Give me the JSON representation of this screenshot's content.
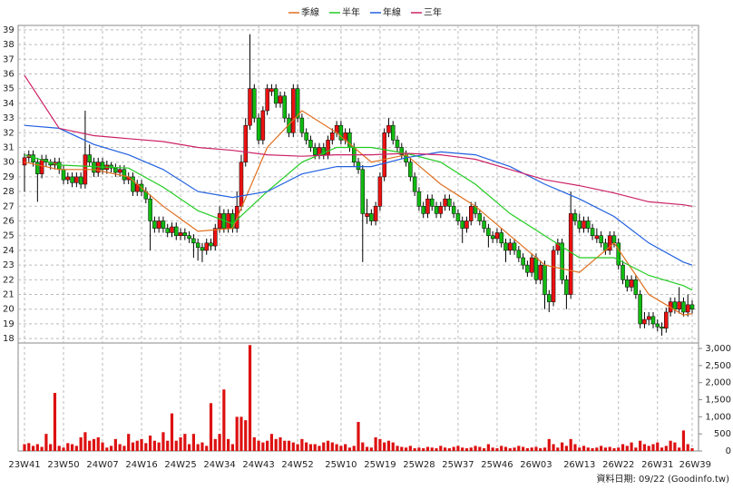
{
  "chart_data": {
    "type": "candlestick",
    "series": [
      {
        "name": "季線",
        "color": "#e07020",
        "x": [
          0,
          8,
          16,
          24,
          32,
          40,
          48,
          56,
          64,
          72,
          80,
          88,
          96,
          104,
          112,
          120,
          128,
          136,
          144,
          152,
          154
        ],
        "values": [
          30,
          29.5,
          29.5,
          29,
          27,
          25.3,
          25.5,
          31,
          33.5,
          32,
          30,
          30.5,
          28.5,
          27,
          25,
          23,
          22.5,
          24.5,
          21,
          19.6,
          19.7
        ]
      },
      {
        "name": "半年",
        "color": "#22cc22",
        "x": [
          0,
          8,
          16,
          24,
          32,
          40,
          48,
          56,
          64,
          72,
          80,
          88,
          96,
          104,
          112,
          120,
          128,
          136,
          144,
          152,
          154
        ],
        "values": [
          30.5,
          29.8,
          29.7,
          29.6,
          28.3,
          26.7,
          25.8,
          28,
          30,
          31,
          31,
          30.6,
          30,
          28.5,
          26.5,
          25,
          23.5,
          23.5,
          22.3,
          21.6,
          21.3
        ]
      },
      {
        "name": "年線",
        "color": "#2060e0",
        "x": [
          0,
          8,
          16,
          24,
          32,
          40,
          48,
          56,
          64,
          72,
          80,
          88,
          96,
          104,
          112,
          120,
          128,
          136,
          144,
          152,
          154
        ],
        "values": [
          32.5,
          32.3,
          31.2,
          30.5,
          29.5,
          28,
          27.6,
          28,
          29.2,
          29.7,
          29.7,
          30.3,
          30.7,
          30.5,
          29.7,
          28.5,
          27.5,
          26.3,
          24.5,
          23.2,
          23
        ]
      },
      {
        "name": "三年",
        "color": "#cc2266",
        "x": [
          0,
          8,
          16,
          24,
          32,
          40,
          48,
          56,
          64,
          72,
          80,
          88,
          96,
          104,
          112,
          120,
          128,
          136,
          144,
          152,
          154
        ],
        "values": [
          35.9,
          32.3,
          31.8,
          31.6,
          31.4,
          31,
          30.8,
          30.5,
          30.4,
          30.5,
          30.5,
          30.6,
          30.5,
          30.2,
          29.5,
          28.8,
          28.4,
          27.9,
          27.3,
          27.1,
          27
        ]
      }
    ],
    "categories": [
      "23W41",
      null,
      null,
      null,
      null,
      null,
      null,
      null,
      null,
      "23W50",
      null,
      null,
      null,
      null,
      null,
      null,
      null,
      null,
      "24W07",
      null,
      null,
      null,
      null,
      null,
      null,
      null,
      null,
      "24W16",
      null,
      null,
      null,
      null,
      null,
      null,
      null,
      null,
      "24W25",
      null,
      null,
      null,
      null,
      null,
      null,
      null,
      null,
      "24W34",
      null,
      null,
      null,
      null,
      null,
      null,
      null,
      null,
      "24W43",
      null,
      null,
      null,
      null,
      null,
      null,
      null,
      null,
      "24W52",
      null,
      null,
      null,
      null,
      null,
      null,
      null,
      null,
      null,
      "25W10",
      null,
      null,
      null,
      null,
      null,
      null,
      null,
      null,
      "25W19",
      null,
      null,
      null,
      null,
      null,
      null,
      null,
      null,
      "25W28",
      null,
      null,
      null,
      null,
      null,
      null,
      null,
      null,
      "25W37",
      null,
      null,
      null,
      null,
      null,
      null,
      null,
      null,
      "25W46",
      null,
      null,
      null,
      null,
      null,
      null,
      null,
      null,
      "26W03",
      null,
      null,
      null,
      null,
      null,
      null,
      null,
      null,
      null,
      "26W13",
      null,
      null,
      null,
      null,
      null,
      null,
      null,
      null,
      "26W22",
      null,
      null,
      null,
      null,
      null,
      null,
      null,
      null,
      "26W31",
      null,
      null,
      null,
      null,
      null,
      null,
      null,
      "26W39"
    ],
    "ohlc": [
      [
        29.8,
        30.6,
        28,
        30.3
      ],
      [
        30.3,
        30.8,
        30,
        30.5
      ],
      [
        30.5,
        30.8,
        29.7,
        30
      ],
      [
        30,
        30.3,
        27.3,
        29.2
      ],
      [
        29.2,
        30.5,
        28.9,
        30.2
      ],
      [
        30.2,
        30.5,
        29.7,
        30
      ],
      [
        30,
        30.2,
        29.5,
        29.8
      ],
      [
        29.8,
        30.3,
        29.5,
        30
      ],
      [
        30,
        30.3,
        29.2,
        29.5
      ],
      [
        29.5,
        29.8,
        28.5,
        28.8
      ],
      [
        28.8,
        29.3,
        28.5,
        29
      ],
      [
        29,
        29.3,
        28.3,
        28.6
      ],
      [
        28.6,
        29.3,
        28.3,
        29
      ],
      [
        29,
        29.3,
        28.2,
        28.5
      ],
      [
        28.5,
        33.5,
        28.2,
        30.5
      ],
      [
        30.5,
        31.2,
        29.7,
        30
      ],
      [
        30,
        30.3,
        29,
        29.3
      ],
      [
        29.3,
        30.3,
        29,
        30
      ],
      [
        30,
        30.3,
        29.2,
        29.5
      ],
      [
        29.5,
        30.1,
        29.2,
        29.8
      ],
      [
        29.8,
        30,
        29.3,
        29.6
      ],
      [
        29.6,
        29.9,
        29,
        29.3
      ],
      [
        29.3,
        29.8,
        29,
        29.5
      ],
      [
        29.5,
        29.8,
        28.5,
        28.8
      ],
      [
        28.8,
        29.3,
        28.5,
        29
      ],
      [
        29,
        29.3,
        27.7,
        28
      ],
      [
        28,
        28.8,
        27.7,
        28.5
      ],
      [
        28.5,
        28.8,
        27.7,
        28
      ],
      [
        28,
        28.3,
        27.2,
        27.5
      ],
      [
        27.5,
        27.8,
        24,
        26
      ],
      [
        26,
        26.3,
        25.2,
        25.5
      ],
      [
        25.5,
        26.3,
        25.2,
        26
      ],
      [
        26,
        26.3,
        25.2,
        25.5
      ],
      [
        25.5,
        25.8,
        24.9,
        25.2
      ],
      [
        25.2,
        25.9,
        24.9,
        25.6
      ],
      [
        25.6,
        25.9,
        24.7,
        25
      ],
      [
        25,
        25.5,
        24.7,
        25.2
      ],
      [
        25.2,
        25.5,
        24.7,
        25
      ],
      [
        25,
        25.3,
        24.5,
        24.8
      ],
      [
        24.8,
        25.1,
        23.5,
        24.5
      ],
      [
        24.5,
        24.8,
        23.3,
        24.2
      ],
      [
        24.2,
        24.5,
        23.2,
        24
      ],
      [
        24,
        24.8,
        23.7,
        24.5
      ],
      [
        24.5,
        24.8,
        24,
        24.3
      ],
      [
        24.3,
        25.8,
        24,
        25.5
      ],
      [
        25.5,
        27,
        25.2,
        26.5
      ],
      [
        26.5,
        26.8,
        25.2,
        25.5
      ],
      [
        25.5,
        26.8,
        25.2,
        26.5
      ],
      [
        26.5,
        26.8,
        25.2,
        25.5
      ],
      [
        25.5,
        28,
        25.2,
        27
      ],
      [
        27,
        30.5,
        26.7,
        30
      ],
      [
        30,
        33,
        29.7,
        32.5
      ],
      [
        32.5,
        38.7,
        32.2,
        35
      ],
      [
        35,
        35.3,
        32.7,
        33
      ],
      [
        33,
        33.3,
        31.2,
        31.5
      ],
      [
        31.5,
        33.8,
        31.2,
        33.5
      ],
      [
        33.5,
        35.3,
        33.2,
        35
      ],
      [
        34.8,
        35.3,
        34.5,
        35
      ],
      [
        35,
        35.3,
        33.7,
        34
      ],
      [
        34,
        34.8,
        33.7,
        34.5
      ],
      [
        34.5,
        34.8,
        32.7,
        33
      ],
      [
        33,
        33.3,
        31.7,
        32
      ],
      [
        32,
        35.3,
        31.7,
        35
      ],
      [
        35,
        35.3,
        32.7,
        33
      ],
      [
        33,
        33.3,
        31.7,
        32
      ],
      [
        32,
        32.3,
        31.2,
        31.5
      ],
      [
        31.5,
        31.8,
        30.7,
        31
      ],
      [
        31,
        31.3,
        30.2,
        30.5
      ],
      [
        30.5,
        31.3,
        30.2,
        31
      ],
      [
        31,
        31.3,
        30.2,
        30.5
      ],
      [
        30.5,
        31.8,
        30.2,
        31.5
      ],
      [
        31.5,
        32.3,
        31.2,
        32
      ],
      [
        32,
        32.8,
        31.7,
        32.5
      ],
      [
        32.5,
        32.8,
        31.2,
        31.5
      ],
      [
        31.5,
        32.3,
        31.2,
        32
      ],
      [
        32,
        32.3,
        30.7,
        31
      ],
      [
        31,
        31.3,
        29.7,
        30
      ],
      [
        30,
        30.3,
        29.2,
        29.5
      ],
      [
        29.5,
        29.8,
        23.2,
        26.5
      ],
      [
        26.3,
        27.5,
        25.8,
        26.5
      ],
      [
        26.5,
        26.8,
        25.7,
        26
      ],
      [
        26,
        27.3,
        25.7,
        27
      ],
      [
        27,
        29.3,
        26.7,
        29
      ],
      [
        29,
        32.3,
        28.7,
        32
      ],
      [
        32,
        33,
        31.7,
        32.5
      ],
      [
        32.5,
        32.8,
        31.2,
        31.5
      ],
      [
        31.5,
        31.8,
        30.7,
        31
      ],
      [
        31,
        31.3,
        30.2,
        30.5
      ],
      [
        30.5,
        30.8,
        29.7,
        30
      ],
      [
        30,
        30.3,
        28.7,
        29
      ],
      [
        29,
        29.3,
        27.7,
        28
      ],
      [
        28,
        28.3,
        26.7,
        27
      ],
      [
        27,
        27.3,
        26.2,
        26.5
      ],
      [
        26.5,
        27.8,
        26.2,
        27.5
      ],
      [
        27.5,
        27.8,
        26.7,
        27
      ],
      [
        27,
        27.3,
        26.2,
        26.5
      ],
      [
        26.5,
        27.3,
        26.2,
        27
      ],
      [
        27,
        27.8,
        26.7,
        27.5
      ],
      [
        27.5,
        27.8,
        26.7,
        27
      ],
      [
        27,
        27.3,
        26.2,
        26.5
      ],
      [
        26.5,
        26.8,
        25.7,
        26
      ],
      [
        26,
        26.3,
        24.5,
        25.5
      ],
      [
        25.5,
        26.3,
        25.2,
        26
      ],
      [
        26,
        27.3,
        25.7,
        27
      ],
      [
        27,
        27.3,
        26.2,
        26.5
      ],
      [
        26.5,
        26.8,
        25.7,
        26
      ],
      [
        26,
        26.3,
        25.2,
        25.5
      ],
      [
        25.5,
        25.8,
        24.2,
        25
      ],
      [
        25,
        25.3,
        24.5,
        24.8
      ],
      [
        24.8,
        25.5,
        24.5,
        25.2
      ],
      [
        25.2,
        25.5,
        24.2,
        24.5
      ],
      [
        24.5,
        24.8,
        23.2,
        24
      ],
      [
        24,
        24.8,
        23.7,
        24.5
      ],
      [
        24.5,
        24.8,
        23.7,
        24
      ],
      [
        24,
        24.3,
        23.2,
        23.5
      ],
      [
        23.5,
        23.8,
        22.7,
        23
      ],
      [
        23,
        23.3,
        22.2,
        22.5
      ],
      [
        22.5,
        23.8,
        22.2,
        23.5
      ],
      [
        23.5,
        23.8,
        21.7,
        22
      ],
      [
        22,
        23.3,
        21.7,
        23
      ],
      [
        23,
        23.3,
        20,
        21
      ],
      [
        21,
        21.3,
        19.8,
        20.5
      ],
      [
        20.5,
        24.3,
        20.2,
        24
      ],
      [
        24,
        24.8,
        23.7,
        24.5
      ],
      [
        24.5,
        24.8,
        21.7,
        22
      ],
      [
        22,
        22.3,
        20,
        21
      ],
      [
        21,
        28,
        20.7,
        26.5
      ],
      [
        26.5,
        26.8,
        25.7,
        26
      ],
      [
        26,
        26.5,
        25.2,
        25.5
      ],
      [
        25.5,
        26.3,
        25.2,
        26
      ],
      [
        26,
        26.3,
        25.2,
        25.5
      ],
      [
        25.5,
        25.8,
        24.7,
        25
      ],
      [
        24.8,
        25.5,
        24.5,
        25
      ],
      [
        25,
        25.3,
        24.2,
        24.5
      ],
      [
        24.5,
        24.8,
        23.7,
        24
      ],
      [
        24,
        25.3,
        23.7,
        25
      ],
      [
        25,
        25.3,
        24.2,
        24.5
      ],
      [
        24.5,
        24.8,
        22.7,
        23
      ],
      [
        23,
        23.3,
        21.7,
        22
      ],
      [
        22,
        22.3,
        21.2,
        21.5
      ],
      [
        21.5,
        22.3,
        21.2,
        22
      ],
      [
        22,
        22.3,
        20.7,
        21
      ],
      [
        21,
        21.3,
        18.7,
        19
      ],
      [
        19,
        19.8,
        18.7,
        19.3
      ],
      [
        19.3,
        19.8,
        18.9,
        19.5
      ],
      [
        19.5,
        19.8,
        18.7,
        19
      ],
      [
        19,
        19.3,
        18.5,
        18.8
      ],
      [
        18.8,
        19.1,
        18.2,
        18.7
      ],
      [
        18.7,
        20.1,
        18.4,
        19.8
      ],
      [
        19.8,
        20.8,
        19.5,
        20.5
      ],
      [
        20.5,
        20.8,
        19.7,
        20
      ],
      [
        20,
        21.5,
        19.7,
        20.5
      ],
      [
        20.5,
        20.8,
        19.5,
        19.8
      ],
      [
        19.8,
        21,
        19.5,
        20.3
      ],
      [
        20.3,
        20.6,
        19.7,
        20
      ]
    ],
    "volume": [
      200,
      230,
      150,
      200,
      120,
      500,
      200,
      1700,
      150,
      100,
      230,
      200,
      150,
      400,
      550,
      300,
      350,
      400,
      250,
      100,
      150,
      350,
      200,
      150,
      500,
      250,
      300,
      350,
      230,
      450,
      300,
      250,
      550,
      300,
      1100,
      300,
      400,
      500,
      200,
      500,
      200,
      250,
      150,
      1400,
      350,
      500,
      1800,
      350,
      200,
      1000,
      1000,
      900,
      3100,
      400,
      300,
      250,
      300,
      500,
      350,
      400,
      300,
      300,
      250,
      200,
      350,
      250,
      200,
      200,
      150,
      250,
      300,
      250,
      200,
      150,
      200,
      100,
      150,
      850,
      250,
      120,
      100,
      400,
      350,
      250,
      300,
      250,
      150,
      120,
      100,
      150,
      80,
      100,
      80,
      120,
      100,
      80,
      150,
      100,
      80,
      120,
      150,
      100,
      80,
      100,
      150,
      120,
      80,
      200,
      100,
      80,
      150,
      120,
      80,
      100,
      150,
      120,
      80,
      100,
      120,
      80,
      100,
      350,
      200,
      100,
      250,
      150,
      350,
      200,
      100,
      150,
      100,
      80,
      100,
      150,
      100,
      120,
      80,
      100,
      200,
      150,
      250,
      100,
      300,
      200,
      150,
      200,
      250,
      100,
      150,
      300,
      250,
      100,
      600,
      200,
      80
    ],
    "up_color": "#ee1111",
    "down_color": "#11bb11",
    "volume_color": "#dd1111",
    "ylim": [
      17.7,
      39.3
    ],
    "yticks": [
      18,
      19,
      20,
      21,
      22,
      23,
      24,
      25,
      26,
      27,
      28,
      29,
      30,
      31,
      32,
      33,
      34,
      35,
      36,
      37,
      38,
      39
    ],
    "volume_ylim": [
      0,
      3160
    ],
    "volume_ticks": [
      0,
      500,
      {
        "value": 1000,
        "label": "1,000"
      },
      {
        "value": 1500,
        "label": "1,500"
      },
      {
        "value": 2000,
        "label": "2,000"
      },
      {
        "value": 2500,
        "label": "2,500"
      },
      {
        "value": 3000,
        "label": "3,000"
      }
    ],
    "grid": true,
    "footer": "資料日期: 09/22  (Goodinfo.tw)"
  }
}
